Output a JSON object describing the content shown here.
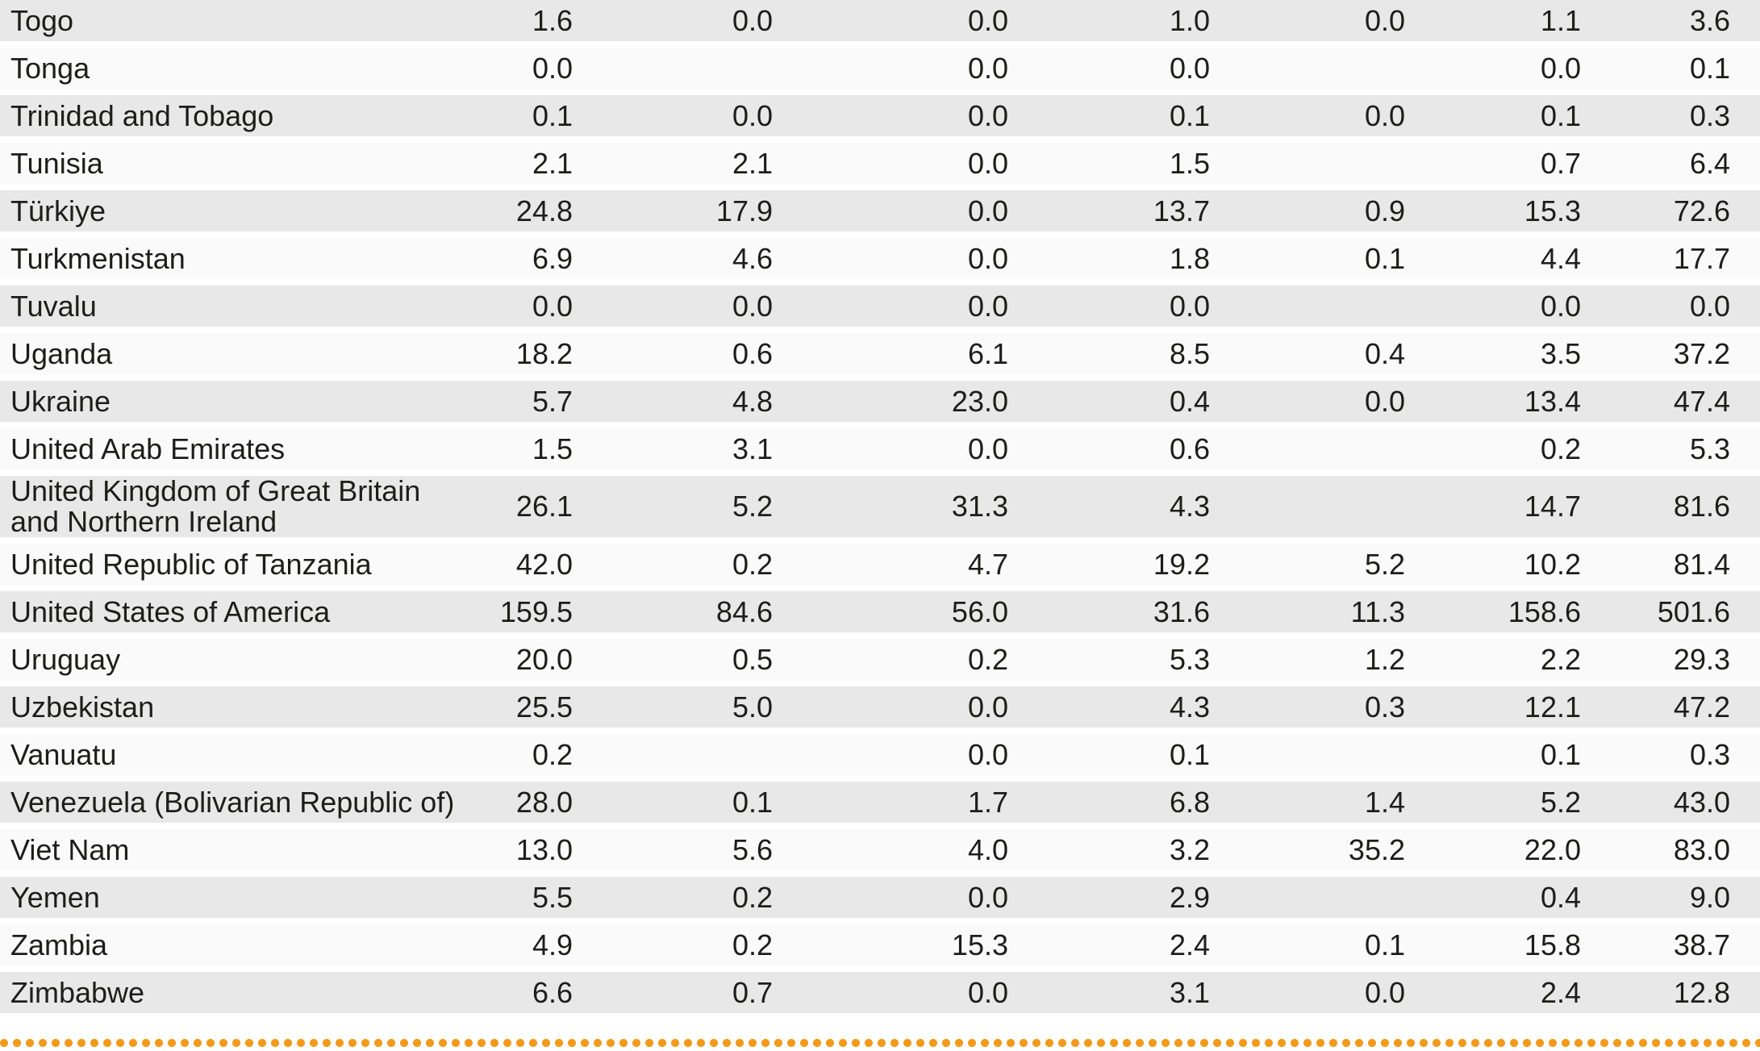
{
  "colors": {
    "row_shaded": "#e8e8e8",
    "row_plain": "#fafafa",
    "text": "#1d1d1b",
    "dots_accent": "#f39a1a"
  },
  "separator": {
    "style": "orange-dotted-line"
  },
  "table": {
    "rows": [
      {
        "country": "Togo",
        "values": [
          "1.6",
          "0.0",
          "0.0",
          "1.0",
          "0.0",
          "1.1",
          "3.6"
        ]
      },
      {
        "country": "Tonga",
        "values": [
          "0.0",
          "",
          "0.0",
          "0.0",
          "",
          "0.0",
          "0.1"
        ]
      },
      {
        "country": "Trinidad and Tobago",
        "values": [
          "0.1",
          "0.0",
          "0.0",
          "0.1",
          "0.0",
          "0.1",
          "0.3"
        ]
      },
      {
        "country": "Tunisia",
        "values": [
          "2.1",
          "2.1",
          "0.0",
          "1.5",
          "",
          "0.7",
          "6.4"
        ]
      },
      {
        "country": "Türkiye",
        "values": [
          "24.8",
          "17.9",
          "0.0",
          "13.7",
          "0.9",
          "15.3",
          "72.6"
        ]
      },
      {
        "country": "Turkmenistan",
        "values": [
          "6.9",
          "4.6",
          "0.0",
          "1.8",
          "0.1",
          "4.4",
          "17.7"
        ]
      },
      {
        "country": "Tuvalu",
        "values": [
          "0.0",
          "0.0",
          "0.0",
          "0.0",
          "",
          "0.0",
          "0.0"
        ]
      },
      {
        "country": "Uganda",
        "values": [
          "18.2",
          "0.6",
          "6.1",
          "8.5",
          "0.4",
          "3.5",
          "37.2"
        ]
      },
      {
        "country": "Ukraine",
        "values": [
          "5.7",
          "4.8",
          "23.0",
          "0.4",
          "0.0",
          "13.4",
          "47.4"
        ]
      },
      {
        "country": "United Arab Emirates",
        "values": [
          "1.5",
          "3.1",
          "0.0",
          "0.6",
          "",
          "0.2",
          "5.3"
        ]
      },
      {
        "country": "United Kingdom of Great Britain\nand Northern Ireland",
        "values": [
          "26.1",
          "5.2",
          "31.3",
          "4.3",
          "",
          "14.7",
          "81.6"
        ]
      },
      {
        "country": "United Republic of Tanzania",
        "values": [
          "42.0",
          "0.2",
          "4.7",
          "19.2",
          "5.2",
          "10.2",
          "81.4"
        ]
      },
      {
        "country": "United States of America",
        "values": [
          "159.5",
          "84.6",
          "56.0",
          "31.6",
          "11.3",
          "158.6",
          "501.6"
        ]
      },
      {
        "country": "Uruguay",
        "values": [
          "20.0",
          "0.5",
          "0.2",
          "5.3",
          "1.2",
          "2.2",
          "29.3"
        ]
      },
      {
        "country": "Uzbekistan",
        "values": [
          "25.5",
          "5.0",
          "0.0",
          "4.3",
          "0.3",
          "12.1",
          "47.2"
        ]
      },
      {
        "country": "Vanuatu",
        "values": [
          "0.2",
          "",
          "0.0",
          "0.1",
          "",
          "0.1",
          "0.3"
        ]
      },
      {
        "country": "Venezuela (Bolivarian Republic of)",
        "values": [
          "28.0",
          "0.1",
          "1.7",
          "6.8",
          "1.4",
          "5.2",
          "43.0"
        ]
      },
      {
        "country": "Viet Nam",
        "values": [
          "13.0",
          "5.6",
          "4.0",
          "3.2",
          "35.2",
          "22.0",
          "83.0"
        ]
      },
      {
        "country": "Yemen",
        "values": [
          "5.5",
          "0.2",
          "0.0",
          "2.9",
          "",
          "0.4",
          "9.0"
        ]
      },
      {
        "country": "Zambia",
        "values": [
          "4.9",
          "0.2",
          "15.3",
          "2.4",
          "0.1",
          "15.8",
          "38.7"
        ]
      },
      {
        "country": "Zimbabwe",
        "values": [
          "6.6",
          "0.7",
          "0.0",
          "3.1",
          "0.0",
          "2.4",
          "12.8"
        ]
      }
    ]
  }
}
